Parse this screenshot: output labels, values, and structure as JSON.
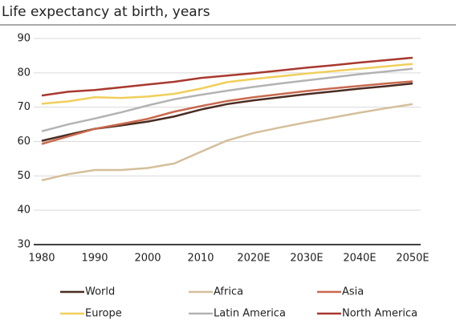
{
  "chart_data": {
    "type": "line",
    "title": "Life expectancy at birth, years",
    "categories": [
      "1980",
      null,
      "1990",
      null,
      "2000",
      null,
      "2010",
      null,
      "2020E",
      null,
      "2030E",
      null,
      "2040E",
      null,
      "2050E"
    ],
    "series": [
      {
        "name": "World",
        "color": "#4a2c22",
        "values": [
          60.2,
          62,
          63.7,
          64.7,
          65.8,
          67.3,
          69.3,
          70.9,
          72,
          72.9,
          73.8,
          74.6,
          75.4,
          76.1,
          76.9
        ]
      },
      {
        "name": "Africa",
        "color": "#d4bf9a",
        "values": [
          48.7,
          50.5,
          51.7,
          51.7,
          52.3,
          53.6,
          57,
          60.3,
          62.5,
          64.1,
          65.6,
          67,
          68.4,
          69.7,
          70.9
        ]
      },
      {
        "name": "Asia",
        "color": "#c9694e",
        "values": [
          59.3,
          61.5,
          63.7,
          65.1,
          66.6,
          68.7,
          70.3,
          71.8,
          72.9,
          73.8,
          74.7,
          75.5,
          76.2,
          76.9,
          77.5
        ]
      },
      {
        "name": "Europe",
        "color": "#f0cf5a",
        "values": [
          71,
          71.7,
          72.9,
          72.7,
          73.1,
          73.9,
          75.4,
          77.3,
          78.2,
          79,
          79.8,
          80.5,
          81.2,
          81.9,
          82.6
        ]
      },
      {
        "name": "Latin America",
        "color": "#b3b3b3",
        "values": [
          63,
          65,
          66.7,
          68.5,
          70.5,
          72.3,
          73.6,
          74.8,
          75.9,
          76.9,
          77.8,
          78.7,
          79.6,
          80.4,
          81.2
        ]
      },
      {
        "name": "North America",
        "color": "#a8392e",
        "values": [
          73.4,
          74.5,
          75,
          75.8,
          76.6,
          77.4,
          78.5,
          79.2,
          79.9,
          80.7,
          81.5,
          82.2,
          83,
          83.7,
          84.4
        ]
      }
    ],
    "ylim": [
      30,
      90
    ],
    "yticks": [
      30,
      40,
      50,
      60,
      70,
      80,
      90
    ],
    "grid": true
  }
}
